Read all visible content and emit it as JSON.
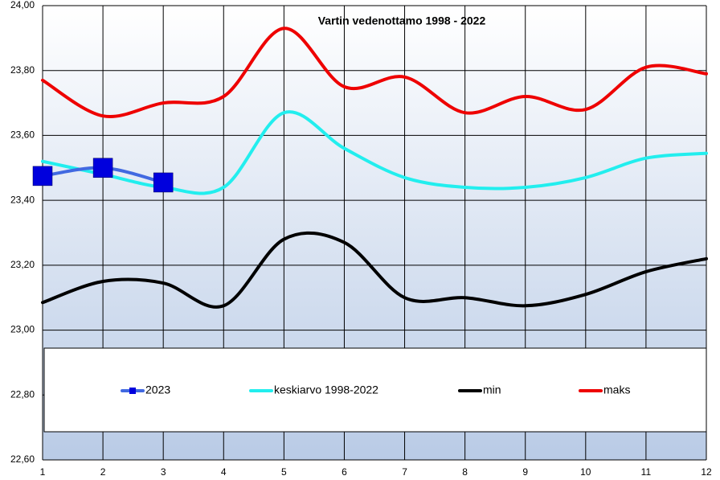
{
  "chart_data": {
    "type": "line",
    "title": "Vartin vedenottamo 1998 - 2022",
    "x": [
      1,
      2,
      3,
      4,
      5,
      6,
      7,
      8,
      9,
      10,
      11,
      12
    ],
    "xlim": [
      1,
      12
    ],
    "xticks": [
      1,
      2,
      3,
      4,
      5,
      6,
      7,
      8,
      9,
      10,
      11,
      12
    ],
    "ylim": [
      22.6,
      24.0
    ],
    "yticks": [
      {
        "value": 22.6,
        "label": "22,60"
      },
      {
        "value": 22.8,
        "label": "22,80"
      },
      {
        "value": 23.0,
        "label": "23,00"
      },
      {
        "value": 23.2,
        "label": "23,20"
      },
      {
        "value": 23.4,
        "label": "23,40"
      },
      {
        "value": 23.6,
        "label": "23,60"
      },
      {
        "value": 23.8,
        "label": "23,80"
      },
      {
        "value": 24.0,
        "label": "24,00"
      }
    ],
    "grid": true,
    "legend": "bottom",
    "series": [
      {
        "name": "2023",
        "color": "#4169e1",
        "marker_color": "#0000dd",
        "values": [
          23.475,
          23.5,
          23.455,
          null,
          null,
          null,
          null,
          null,
          null,
          null,
          null,
          null
        ]
      },
      {
        "name": "keskiarvo 1998-2022",
        "color": "#22eeee",
        "values": [
          23.52,
          23.48,
          23.44,
          23.44,
          23.67,
          23.56,
          23.47,
          23.44,
          23.44,
          23.47,
          23.53,
          23.545
        ]
      },
      {
        "name": "min",
        "color": "#000000",
        "values": [
          23.085,
          23.15,
          23.145,
          23.075,
          23.28,
          23.27,
          23.1,
          23.1,
          23.075,
          23.11,
          23.18,
          23.22
        ]
      },
      {
        "name": "maks",
        "color": "#ee0000",
        "values": [
          23.77,
          23.66,
          23.7,
          23.72,
          23.93,
          23.75,
          23.78,
          23.67,
          23.72,
          23.68,
          23.81,
          23.79
        ]
      }
    ]
  }
}
